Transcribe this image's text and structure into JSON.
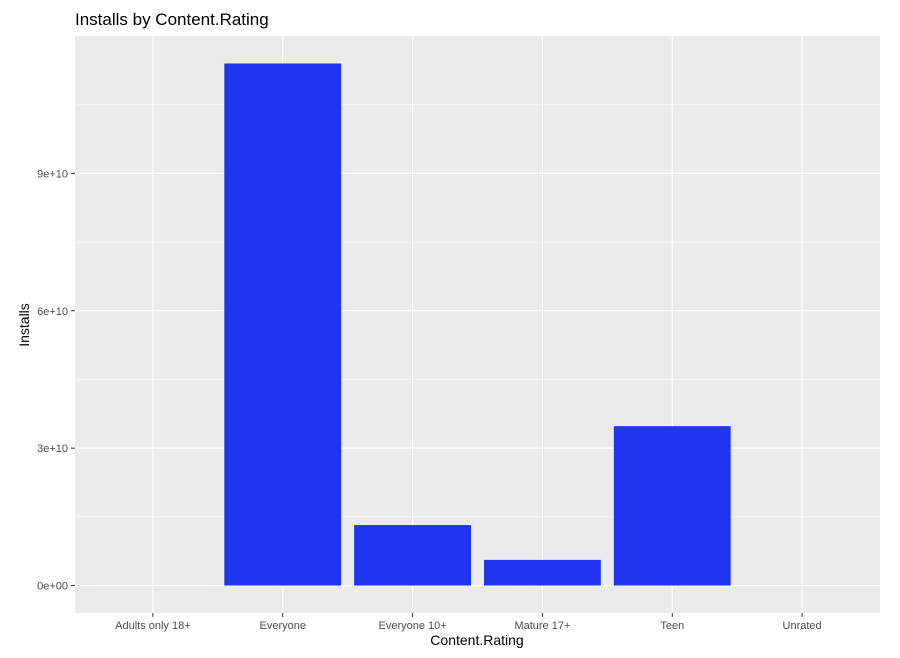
{
  "chart_data": {
    "type": "bar",
    "title": "Installs by Content.Rating",
    "xlabel": "Content.Rating",
    "ylabel": "Installs",
    "categories": [
      "Adults only 18+",
      "Everyone",
      "Everyone 10+",
      "Mature 17+",
      "Teen",
      "Unrated"
    ],
    "values": [
      1000000,
      114000000000,
      13200000000,
      5600000000,
      34800000000,
      50000
    ],
    "yticks": [
      0,
      30000000000,
      60000000000,
      90000000000
    ],
    "ytick_labels": [
      "0e+00",
      "3e+10",
      "6e+10",
      "9e+10"
    ],
    "ylim": [
      -6000000000,
      120000000000
    ],
    "bar_color": "#1f33f0",
    "panel_color": "#ebebeb",
    "grid_color": "#ffffff",
    "grid": true,
    "legend": "none"
  }
}
